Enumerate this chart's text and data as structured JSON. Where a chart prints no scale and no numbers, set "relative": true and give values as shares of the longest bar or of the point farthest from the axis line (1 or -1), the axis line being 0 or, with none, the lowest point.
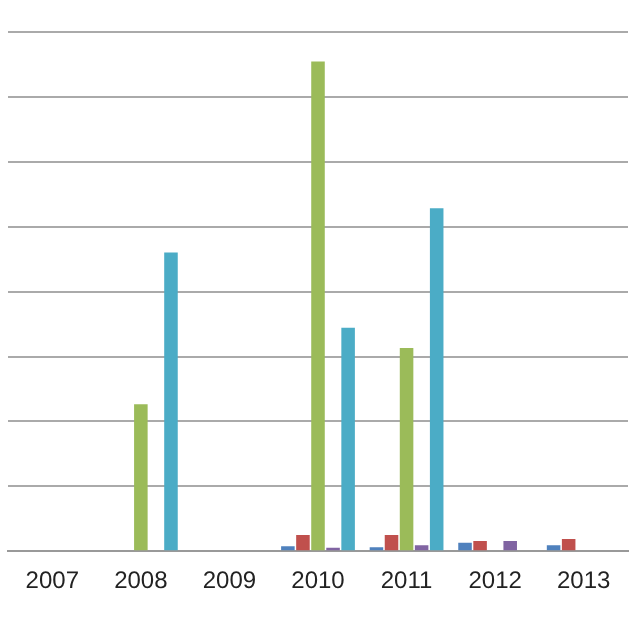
{
  "chart_data": {
    "type": "bar",
    "relative": true,
    "grid": "y",
    "legend": false,
    "categories": [
      "2007",
      "2008",
      "2009",
      "2010",
      "2011",
      "2012",
      "2013"
    ],
    "series": [
      {
        "color": "#4f81bd",
        "values": [
          null,
          null,
          null,
          0.01,
          0.008,
          0.017,
          0.012
        ]
      },
      {
        "color": "#c0504d",
        "values": [
          null,
          null,
          null,
          0.033,
          0.033,
          0.021,
          0.025
        ]
      },
      {
        "color": "#9bbb59",
        "values": [
          null,
          0.3,
          null,
          1,
          0.415,
          null,
          null
        ]
      },
      {
        "color": "#8064a2",
        "values": [
          null,
          null,
          null,
          0.007,
          0.012,
          0.021,
          null
        ]
      },
      {
        "color": "#4bacc6",
        "values": [
          null,
          0.61,
          null,
          0.456,
          0.7,
          null,
          null
        ]
      }
    ]
  }
}
